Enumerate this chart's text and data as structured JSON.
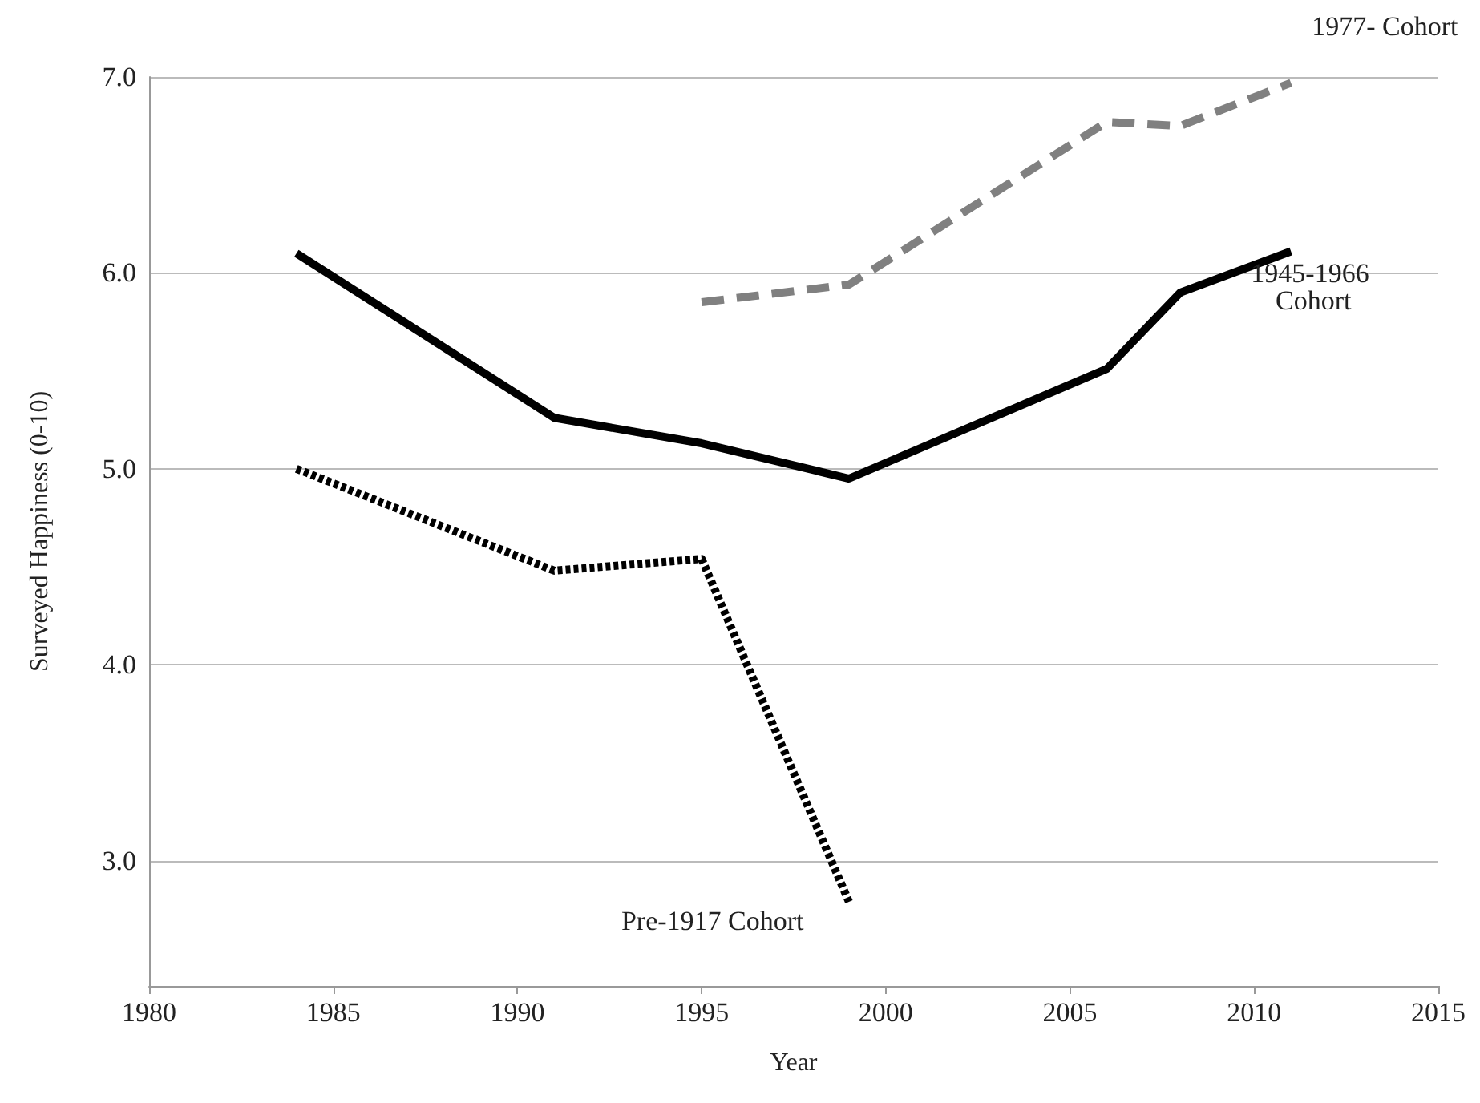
{
  "chart_data": {
    "type": "line",
    "xlabel": "Year",
    "ylabel": "Surveyed Happiness (0-10)",
    "xlim": [
      1980,
      2015
    ],
    "xticks": [
      1980,
      1985,
      1990,
      1995,
      2000,
      2005,
      2010,
      2015
    ],
    "ylim": [
      2.36,
      7.0
    ],
    "yticks": [
      {
        "value": 3,
        "label": "3.0"
      },
      {
        "value": 4,
        "label": "4.0"
      },
      {
        "value": 5,
        "label": "5.0"
      },
      {
        "value": 6,
        "label": "6.0"
      },
      {
        "value": 7,
        "label": "7.0"
      }
    ],
    "grid": "y",
    "legend": false,
    "marker": "none",
    "series": [
      {
        "name": "1945-1966 Cohort",
        "color": "#000000",
        "line_style": "solid",
        "x": [
          1984,
          1991,
          1995,
          1999,
          2006,
          2008,
          2011
        ],
        "values": [
          6.1,
          5.26,
          5.13,
          4.95,
          5.51,
          5.9,
          6.11
        ]
      },
      {
        "name": "1977- Cohort",
        "color": "#808080",
        "line_style": "dashed",
        "x": [
          1995,
          1999,
          2006,
          2008,
          2011
        ],
        "values": [
          5.85,
          5.94,
          6.77,
          6.75,
          6.97
        ]
      },
      {
        "name": "Pre-1917 Cohort",
        "color": "#000000",
        "line_style": "dotted",
        "x": [
          1984,
          1991,
          1995,
          1999
        ],
        "values": [
          5.0,
          4.48,
          4.54,
          2.79
        ]
      }
    ]
  }
}
